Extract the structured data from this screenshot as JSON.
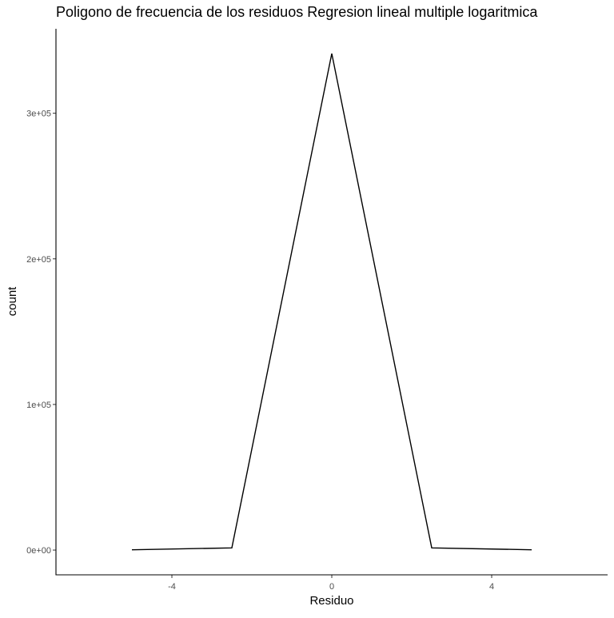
{
  "chart_data": {
    "type": "line",
    "title": "Poligono de frecuencia de los residuos Regresion lineal multiple logaritmica",
    "xlabel": "Residuo",
    "ylabel": "count",
    "x": [
      -5,
      -2.5,
      0,
      2.5,
      5
    ],
    "series": [
      {
        "values": [
          200,
          1500,
          341000,
          1500,
          200
        ]
      }
    ],
    "xlim": [
      -6.9,
      6.9
    ],
    "ylim": [
      -17000,
      358000
    ],
    "xticks": [
      -4,
      0,
      4
    ],
    "xtick_labels": [
      "-4",
      "0",
      "4"
    ],
    "yticks": [
      0,
      100000,
      200000,
      300000
    ],
    "ytick_labels": [
      "0e+00",
      "1e+05",
      "2e+05",
      "3e+05"
    ],
    "grid": false,
    "legend": "none",
    "line_color": "#000000",
    "axis_color": "#000000"
  }
}
